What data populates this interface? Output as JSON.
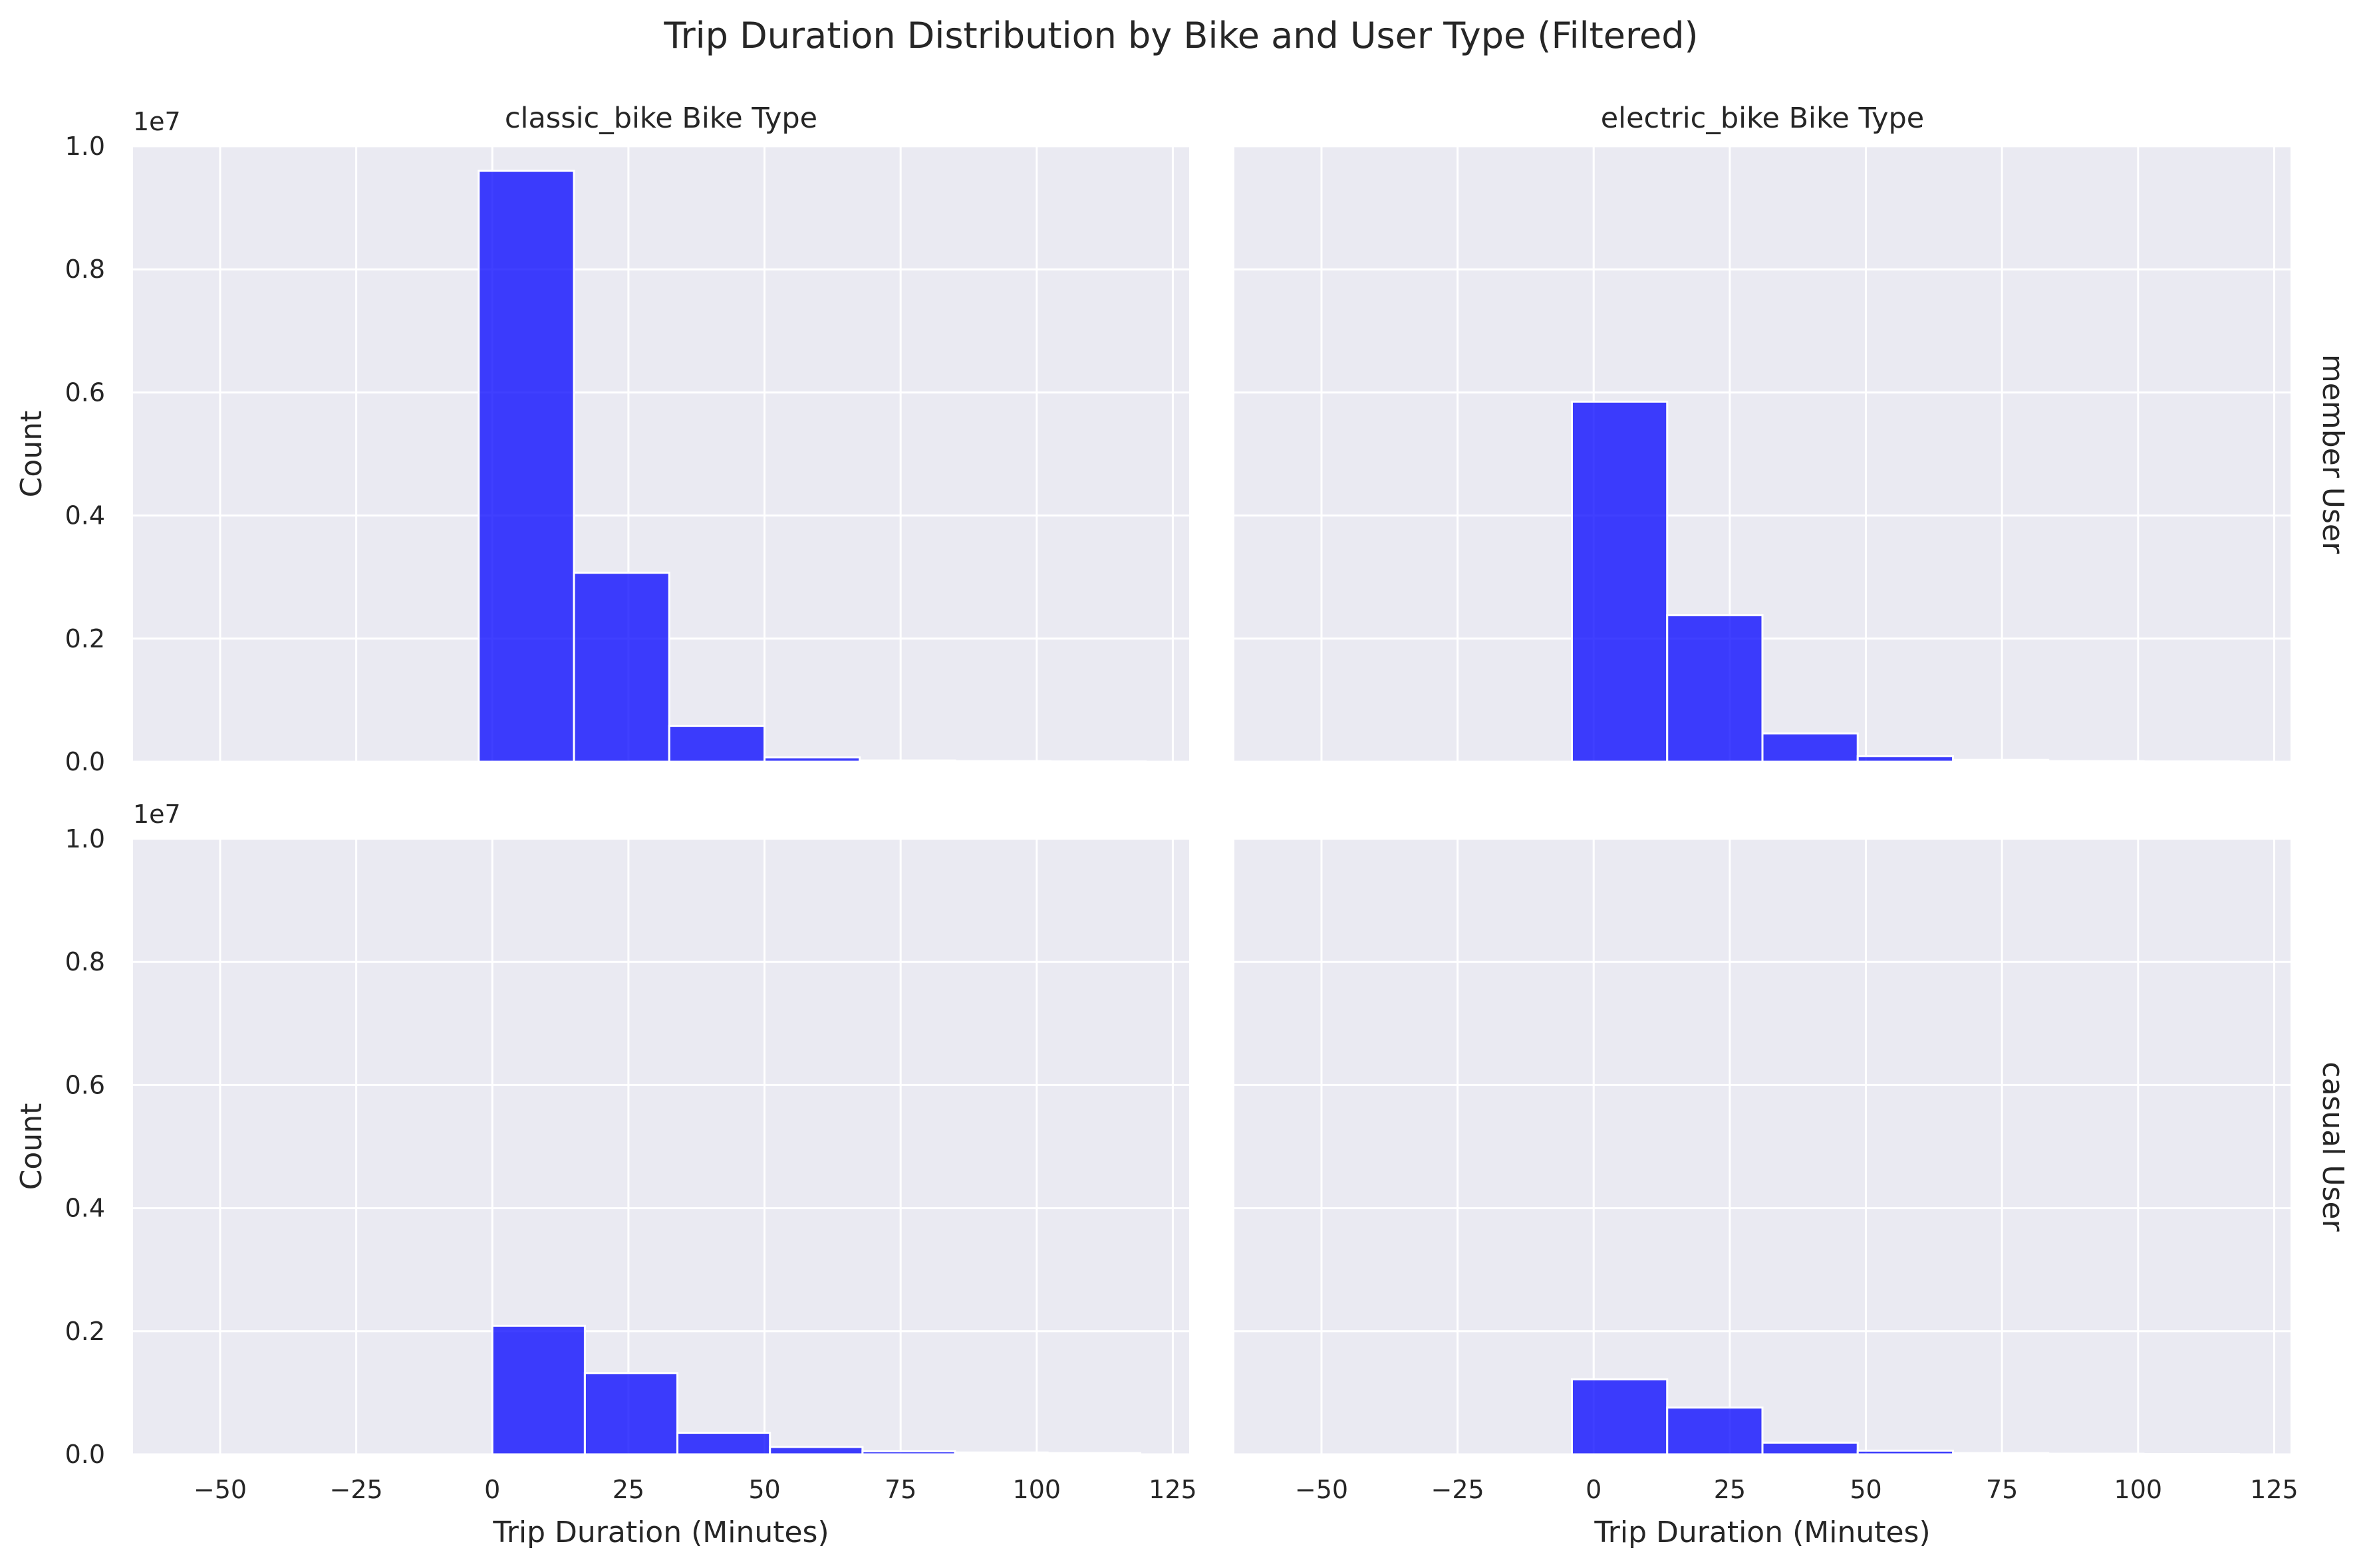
{
  "figure": {
    "title": "Trip Duration Distribution by Bike and User Type (Filtered)",
    "shared_xlabel": "Trip Duration (Minutes)",
    "shared_ylabel": "Count",
    "y_offset_label": "1e7",
    "x_ticks": [
      -50,
      -25,
      0,
      25,
      50,
      75,
      100,
      125
    ],
    "y_ticks": [
      0.0,
      0.2,
      0.4,
      0.6,
      0.8,
      1.0
    ],
    "x_range": [
      -66,
      128
    ],
    "y_range": [
      0,
      1.0
    ],
    "panel_background": "#eaeaf2",
    "bar_color": "#0000ff",
    "bar_opacity": 0.75
  },
  "chart_data": [
    {
      "type": "bar",
      "col_title": "classic_bike Bike Type",
      "row_label": "member User",
      "xlabel": "",
      "ylabel": "Count",
      "bins": [
        {
          "x0": -2.5,
          "x1": 15,
          "value": 9.6
        },
        {
          "x0": 15,
          "x1": 32.5,
          "value": 3.07
        },
        {
          "x0": 32.5,
          "x1": 50,
          "value": 0.58
        },
        {
          "x0": 50,
          "x1": 67.5,
          "value": 0.07
        },
        {
          "x0": 67.5,
          "x1": 85,
          "value": 0.02
        },
        {
          "x0": 85,
          "x1": 102.5,
          "value": 0.01
        },
        {
          "x0": 102.5,
          "x1": 120,
          "value": 0.005
        }
      ]
    },
    {
      "type": "bar",
      "col_title": "electric_bike Bike Type",
      "row_label": "member User",
      "xlabel": "",
      "ylabel": "",
      "bins": [
        {
          "x0": -4,
          "x1": 13.5,
          "value": 5.85
        },
        {
          "x0": 13.5,
          "x1": 31,
          "value": 2.38
        },
        {
          "x0": 31,
          "x1": 48.5,
          "value": 0.46
        },
        {
          "x0": 48.5,
          "x1": 66,
          "value": 0.09
        },
        {
          "x0": 66,
          "x1": 83.5,
          "value": 0.03
        },
        {
          "x0": 83.5,
          "x1": 101,
          "value": 0.01
        },
        {
          "x0": 101,
          "x1": 118.5,
          "value": 0.005
        }
      ]
    },
    {
      "type": "bar",
      "col_title": "",
      "row_label": "casual User",
      "xlabel": "Trip Duration (Minutes)",
      "ylabel": "Count",
      "bins": [
        {
          "x0": 0,
          "x1": 17,
          "value": 2.09
        },
        {
          "x0": 17,
          "x1": 34,
          "value": 1.32
        },
        {
          "x0": 34,
          "x1": 51,
          "value": 0.35
        },
        {
          "x0": 51,
          "x1": 68,
          "value": 0.12
        },
        {
          "x0": 68,
          "x1": 85,
          "value": 0.05
        },
        {
          "x0": 85,
          "x1": 102,
          "value": 0.03
        },
        {
          "x0": 102,
          "x1": 119,
          "value": 0.02
        }
      ]
    },
    {
      "type": "bar",
      "col_title": "",
      "row_label": "",
      "xlabel": "Trip Duration (Minutes)",
      "ylabel": "",
      "bins": [
        {
          "x0": -4,
          "x1": 13.5,
          "value": 1.22
        },
        {
          "x0": 13.5,
          "x1": 31,
          "value": 0.76
        },
        {
          "x0": 31,
          "x1": 48.5,
          "value": 0.19
        },
        {
          "x0": 48.5,
          "x1": 66,
          "value": 0.06
        },
        {
          "x0": 66,
          "x1": 83.5,
          "value": 0.02
        },
        {
          "x0": 83.5,
          "x1": 101,
          "value": 0.01
        },
        {
          "x0": 101,
          "x1": 118.5,
          "value": 0.005
        }
      ]
    }
  ]
}
